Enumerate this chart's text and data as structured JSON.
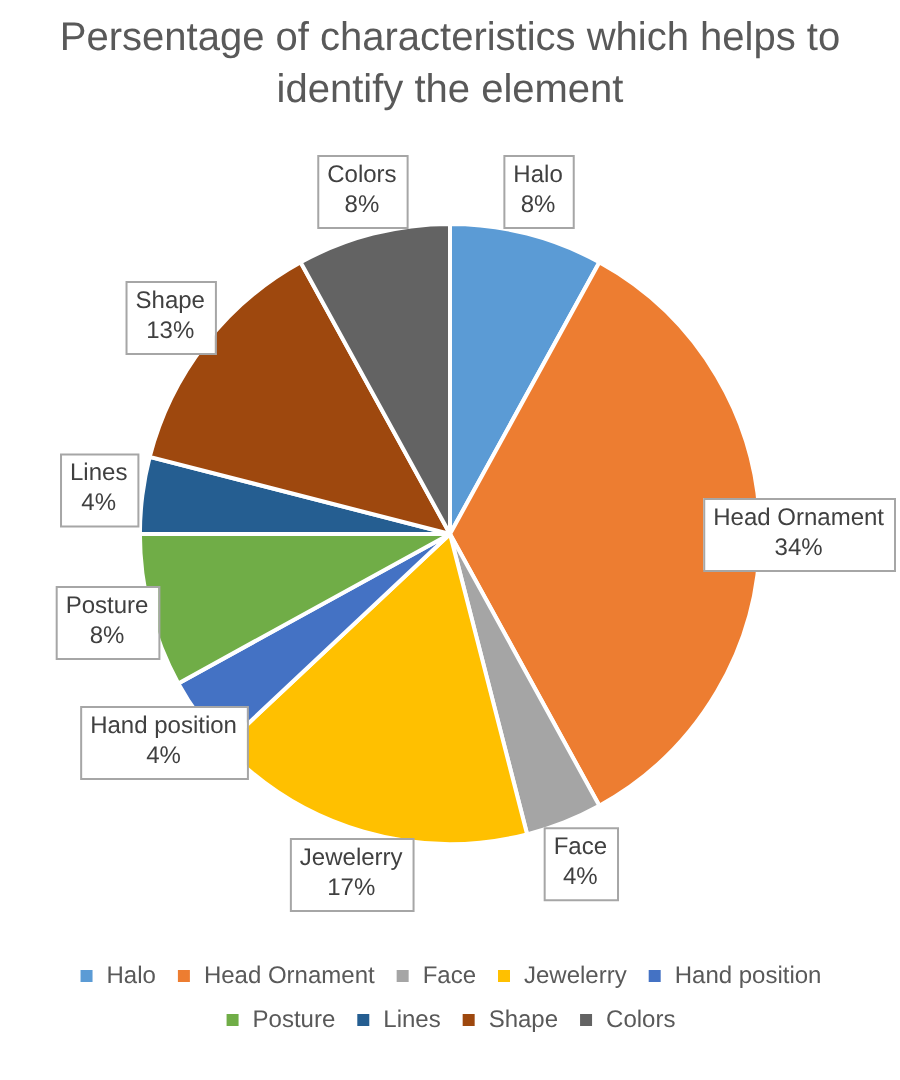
{
  "chart_data": {
    "type": "pie",
    "title": "Persentage of characteristics which helps to identify the element",
    "categories": [
      "Halo",
      "Head Ornament",
      "Face",
      "Jewelerry",
      "Hand position",
      "Posture",
      "Lines",
      "Shape",
      "Colors"
    ],
    "values": [
      8,
      34,
      4,
      17,
      4,
      8,
      4,
      13,
      8
    ],
    "value_labels": [
      "8%",
      "34%",
      "4%",
      "17%",
      "4%",
      "8%",
      "4%",
      "13%",
      "8%"
    ],
    "colors": [
      "#5b9bd5",
      "#ed7d31",
      "#a5a5a5",
      "#ffc000",
      "#4472c4",
      "#70ad47",
      "#255e91",
      "#9e480e",
      "#636363"
    ],
    "legend": "bottom"
  }
}
